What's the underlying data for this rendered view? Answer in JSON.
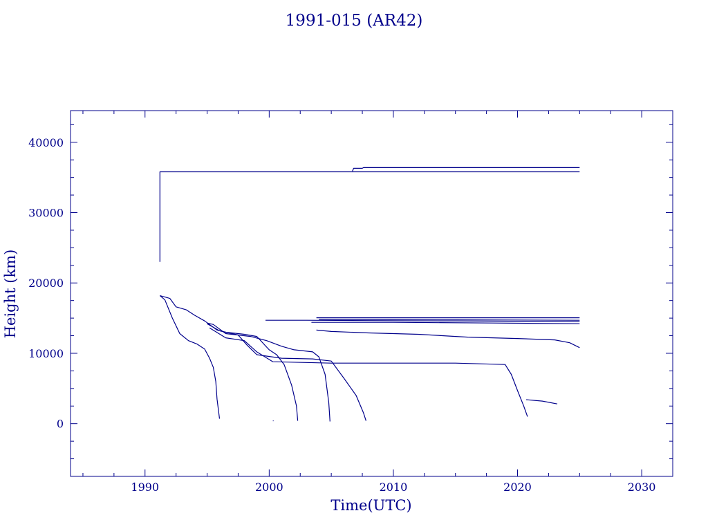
{
  "chart_data": {
    "type": "line",
    "title": "1991-015 (AR42)",
    "xlabel": "Time(UTC)",
    "ylabel": "Height (km)",
    "xlim": [
      1984,
      2032.5
    ],
    "ylim": [
      -7500,
      44500
    ],
    "xticks": [
      1990,
      2000,
      2010,
      2020,
      2030
    ],
    "yticks": [
      0,
      10000,
      20000,
      30000,
      40000
    ],
    "xtick_labels": [
      "1990",
      "2000",
      "2010",
      "2020",
      "2030"
    ],
    "ytick_labels": [
      "0",
      "10000",
      "20000",
      "30000",
      "40000"
    ],
    "grid": false,
    "color": "#00008B",
    "series": [
      {
        "points": [
          [
            1991.2,
            23000
          ],
          [
            1991.2,
            35800
          ],
          [
            1991.5,
            35800
          ],
          [
            2006.7,
            35800
          ],
          [
            2025.0,
            35800
          ]
        ]
      },
      {
        "points": [
          [
            2006.7,
            35900
          ],
          [
            2006.8,
            36300
          ],
          [
            2007.5,
            36300
          ],
          [
            2007.6,
            36400
          ],
          [
            2025.0,
            36400
          ]
        ]
      },
      {
        "points": [
          [
            1991.2,
            18200
          ],
          [
            1991.6,
            17600
          ],
          [
            1992.2,
            15000
          ],
          [
            1992.8,
            12800
          ],
          [
            1993.5,
            11800
          ],
          [
            1994.2,
            11300
          ],
          [
            1994.8,
            10600
          ],
          [
            1995.2,
            9300
          ],
          [
            1995.5,
            8000
          ],
          [
            1995.7,
            6000
          ],
          [
            1995.8,
            3500
          ],
          [
            1996.0,
            700
          ]
        ]
      },
      {
        "points": [
          [
            1991.2,
            18200
          ],
          [
            1992.0,
            17800
          ],
          [
            1992.5,
            16600
          ],
          [
            1993.3,
            16200
          ],
          [
            1994.0,
            15400
          ],
          [
            1994.8,
            14600
          ],
          [
            1995.2,
            14100
          ],
          [
            1995.8,
            13300
          ],
          [
            1996.5,
            13000
          ],
          [
            1998.0,
            12700
          ],
          [
            1999.0,
            12400
          ],
          [
            2000.0,
            10500
          ],
          [
            2000.6,
            9800
          ],
          [
            2001.2,
            8400
          ],
          [
            2001.8,
            5500
          ],
          [
            2002.2,
            2500
          ],
          [
            2002.3,
            400
          ]
        ]
      },
      {
        "points": [
          [
            1995.0,
            14300
          ],
          [
            1995.5,
            14100
          ],
          [
            1996.5,
            12800
          ],
          [
            1998.5,
            12400
          ],
          [
            1999.8,
            11800
          ],
          [
            2001.0,
            11000
          ],
          [
            2002.0,
            10500
          ],
          [
            2003.5,
            10200
          ],
          [
            2004.0,
            9500
          ],
          [
            2004.5,
            7000
          ],
          [
            2004.8,
            3000
          ],
          [
            2004.9,
            300
          ]
        ]
      },
      {
        "points": [
          [
            1995.0,
            14200
          ],
          [
            1996.0,
            13200
          ],
          [
            1997.5,
            12600
          ],
          [
            1998.2,
            11200
          ],
          [
            1999.0,
            9800
          ],
          [
            2001.0,
            9300
          ],
          [
            2003.5,
            9200
          ],
          [
            2005.0,
            8900
          ],
          [
            2006.0,
            6500
          ],
          [
            2007.0,
            4000
          ],
          [
            2007.6,
            1500
          ],
          [
            2007.8,
            400
          ]
        ]
      },
      {
        "points": [
          [
            1995.2,
            13600
          ],
          [
            1996.5,
            12200
          ],
          [
            1998.0,
            11800
          ],
          [
            1999.0,
            10200
          ],
          [
            2000.3,
            8800
          ],
          [
            2005.0,
            8600
          ],
          [
            2010.0,
            8600
          ],
          [
            2015.0,
            8600
          ],
          [
            2019.0,
            8400
          ],
          [
            2019.5,
            7000
          ],
          [
            2020.0,
            4700
          ],
          [
            2020.5,
            2500
          ],
          [
            2020.8,
            1000
          ]
        ]
      },
      {
        "points": [
          [
            2020.7,
            3400
          ],
          [
            2022.0,
            3200
          ],
          [
            2023.2,
            2800
          ]
        ]
      },
      {
        "points": [
          [
            2000.3,
            400
          ],
          [
            2000.35,
            400
          ]
        ]
      },
      {
        "points": [
          [
            1999.7,
            14700
          ],
          [
            2003.0,
            14700
          ],
          [
            2008.0,
            14650
          ],
          [
            2015.0,
            14600
          ],
          [
            2025.0,
            14500
          ]
        ]
      },
      {
        "points": [
          [
            2003.8,
            15050
          ],
          [
            2015.0,
            15050
          ],
          [
            2025.0,
            15050
          ]
        ]
      },
      {
        "points": [
          [
            2003.4,
            14400
          ],
          [
            2010.0,
            14400
          ],
          [
            2018.0,
            14300
          ],
          [
            2025.0,
            14200
          ]
        ]
      },
      {
        "points": [
          [
            2004.0,
            14800
          ],
          [
            2015.0,
            14750
          ],
          [
            2025.0,
            14700
          ]
        ]
      },
      {
        "points": [
          [
            2003.8,
            13300
          ],
          [
            2005.0,
            13100
          ],
          [
            2008.0,
            12900
          ],
          [
            2012.0,
            12700
          ],
          [
            2016.0,
            12300
          ],
          [
            2020.0,
            12100
          ],
          [
            2023.0,
            11900
          ],
          [
            2024.2,
            11500
          ],
          [
            2025.0,
            10800
          ]
        ]
      }
    ]
  }
}
